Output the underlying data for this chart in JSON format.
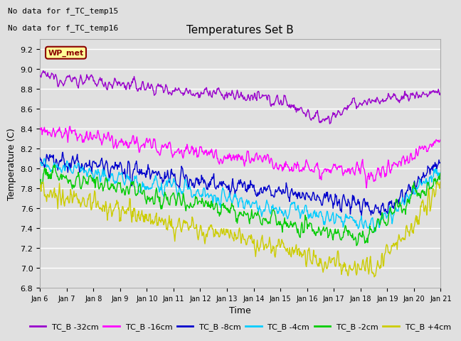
{
  "title": "Temperatures Set B",
  "xlabel": "Time",
  "ylabel": "Temperature (C)",
  "ylim": [
    6.8,
    9.3
  ],
  "xlim": [
    0,
    15
  ],
  "text_no_data1": "No data for f_TC_temp15",
  "text_no_data2": "No data for f_TC_temp16",
  "wp_met_label": "WP_met",
  "background_color": "#e0e0e0",
  "plot_bg_color": "#e0e0e0",
  "grid_color": "white",
  "x_tick_labels": [
    "Jan 6",
    "Jan 7",
    "Jan 8",
    "Jan 9",
    "Jan 10",
    "Jan 11",
    "Jan 12",
    "Jan 13",
    "Jan 14",
    "Jan 15",
    "Jan 16",
    "Jan 17",
    "Jan 18",
    "Jan 19",
    "Jan 20",
    "Jan 21"
  ],
  "legend_line_colors": [
    "#9900cc",
    "#ff00ff",
    "#0000cc",
    "#00ccff",
    "#00cc00",
    "#cccc00"
  ],
  "legend_labels": [
    "TC_B -32cm",
    "TC_B -16cm",
    "TC_B -8cm",
    "TC_B -4cm",
    "TC_B -2cm",
    "TC_B +4cm"
  ]
}
